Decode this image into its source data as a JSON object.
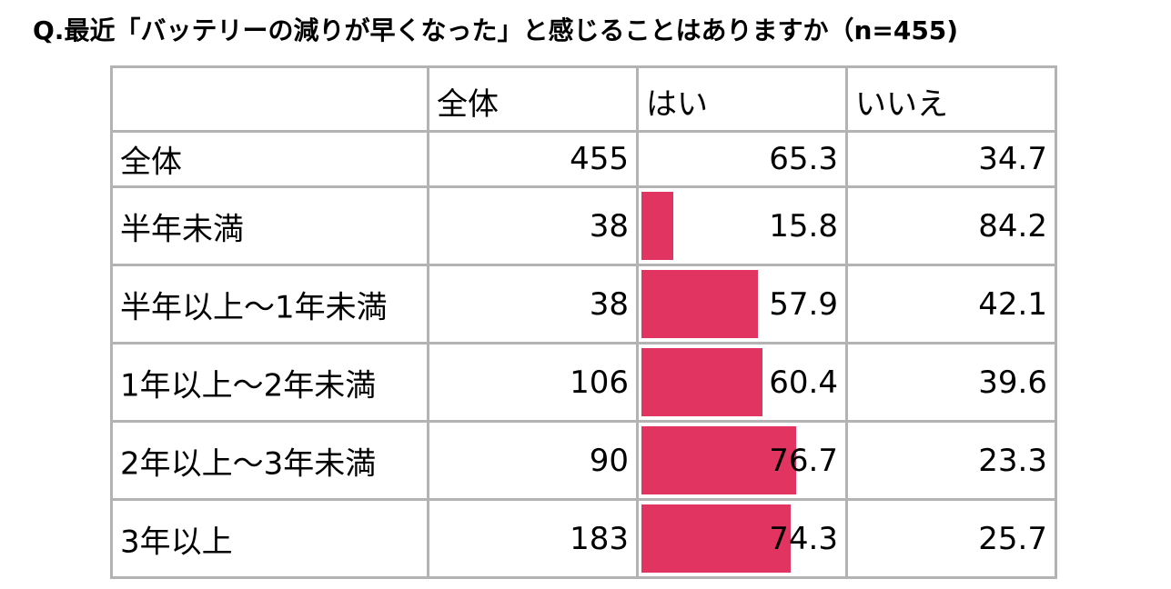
{
  "title": "Q.最近「バッテリーの減りが早くなった」と感じることはありますか（n=455)",
  "chart_data": {
    "type": "table",
    "columns": [
      "",
      "全体",
      "はい",
      "いいえ"
    ],
    "rows": [
      {
        "label": "全体",
        "n": "455",
        "yes": "65.3",
        "no": "34.7",
        "show_bar": false
      },
      {
        "label": "半年未満",
        "n": "38",
        "yes": "15.8",
        "no": "84.2",
        "show_bar": true
      },
      {
        "label": "半年以上～1年未満",
        "n": "38",
        "yes": "57.9",
        "no": "42.1",
        "show_bar": true
      },
      {
        "label": "1年以上～2年未満",
        "n": "106",
        "yes": "60.4",
        "no": "39.6",
        "show_bar": true
      },
      {
        "label": "2年以上～3年未満",
        "n": "90",
        "yes": "76.7",
        "no": "23.3",
        "show_bar": true
      },
      {
        "label": "3年以上",
        "n": "183",
        "yes": "74.3",
        "no": "25.7",
        "show_bar": true
      }
    ],
    "bar_color": "#e23461",
    "bar_scale_max": 100
  }
}
